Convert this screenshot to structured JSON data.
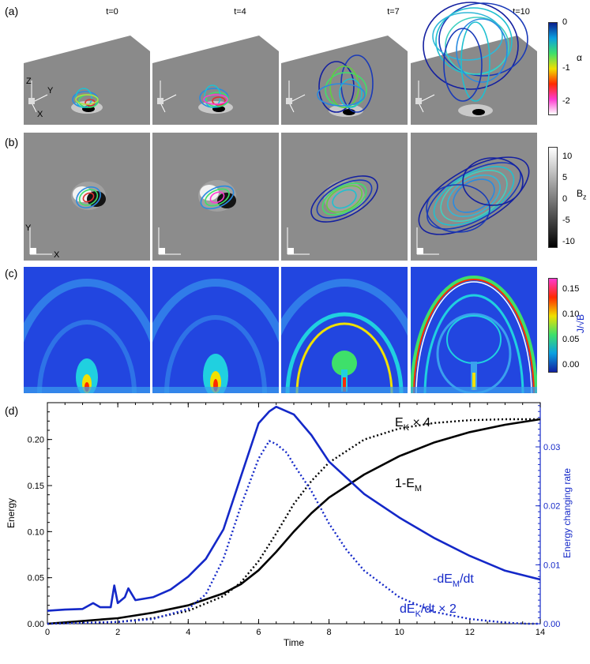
{
  "panels": {
    "a": {
      "label": "(a)",
      "times": [
        "t=0",
        "t=4",
        "t=7",
        "t=10"
      ],
      "colorbar": {
        "title": "α",
        "ticks": [
          "0",
          "-1",
          "-2"
        ],
        "colors": [
          "#0a1e8c",
          "#0aa0e0",
          "#3ee06a",
          "#f0e000",
          "#ff2a00",
          "#ff3ad0",
          "#ffffff"
        ]
      },
      "axes_letters": {
        "z": "Z",
        "y": "Y",
        "x": "X"
      }
    },
    "b": {
      "label": "(b)",
      "colorbar": {
        "title": "Bz",
        "title_main": "B",
        "title_sub": "z",
        "ticks": [
          "10",
          "5",
          "0",
          "-5",
          "-10"
        ],
        "colors": [
          "#ffffff",
          "#808080",
          "#000000"
        ]
      },
      "axes_letters": {
        "y": "Y",
        "x": "X"
      }
    },
    "c": {
      "label": "(c)",
      "colorbar": {
        "title": "J/√B",
        "ticks": [
          "0.15",
          "0.10",
          "0.05",
          "0.00"
        ],
        "colors": [
          "#ff3ad0",
          "#ff2a00",
          "#f0e000",
          "#3ee06a",
          "#0aa0e0",
          "#1020a0"
        ]
      }
    },
    "d": {
      "label": "(d)"
    }
  },
  "chart_data": {
    "type": "line",
    "xlabel": "Time",
    "ylabel": "Energy",
    "y2label": "Energy changing rate",
    "xlim": [
      0,
      14
    ],
    "ylim": [
      0,
      0.24
    ],
    "y2lim": [
      0,
      0.0375
    ],
    "xticks": [
      "0",
      "2",
      "4",
      "6",
      "8",
      "10",
      "12",
      "14"
    ],
    "yticks": [
      "0.00",
      "0.05",
      "0.10",
      "0.15",
      "0.20"
    ],
    "y2ticks": [
      "0.00",
      "0.01",
      "0.02",
      "0.03"
    ],
    "colors": {
      "energy": "#000000",
      "rate": "#1428c8"
    },
    "series": [
      {
        "name": "E_K × 4",
        "axis": "left",
        "style": "dotted",
        "color": "#000000",
        "x": [
          0,
          2,
          3,
          4,
          5,
          5.5,
          6,
          6.5,
          7,
          7.5,
          8,
          9,
          10,
          11,
          12,
          13,
          14
        ],
        "y": [
          0,
          0.002,
          0.006,
          0.014,
          0.03,
          0.045,
          0.068,
          0.098,
          0.13,
          0.155,
          0.175,
          0.2,
          0.212,
          0.218,
          0.221,
          0.222,
          0.222
        ]
      },
      {
        "name": "1-E_M",
        "axis": "left",
        "style": "solid",
        "color": "#000000",
        "x": [
          0,
          2,
          3,
          4,
          5,
          5.5,
          6,
          6.5,
          7,
          7.5,
          8,
          9,
          10,
          11,
          12,
          13,
          14
        ],
        "y": [
          0,
          0.006,
          0.012,
          0.02,
          0.033,
          0.043,
          0.058,
          0.078,
          0.1,
          0.12,
          0.137,
          0.162,
          0.182,
          0.197,
          0.208,
          0.216,
          0.222
        ]
      },
      {
        "name": "-dE_M/dt",
        "axis": "right",
        "style": "solid",
        "color": "#1428c8",
        "x": [
          0,
          0.5,
          1,
          1.3,
          1.5,
          1.8,
          1.9,
          2.0,
          2.2,
          2.3,
          2.5,
          3,
          3.5,
          4,
          4.5,
          5,
          5.5,
          6,
          6.3,
          6.5,
          7,
          7.5,
          8,
          9,
          10,
          11,
          12,
          13,
          14
        ],
        "y": [
          0.0022,
          0.0024,
          0.0025,
          0.0035,
          0.0028,
          0.0028,
          0.0065,
          0.0035,
          0.0045,
          0.006,
          0.004,
          0.0045,
          0.0058,
          0.008,
          0.011,
          0.016,
          0.025,
          0.034,
          0.036,
          0.0368,
          0.0355,
          0.032,
          0.0275,
          0.022,
          0.018,
          0.0145,
          0.0115,
          0.009,
          0.0075
        ]
      },
      {
        "name": "dE_K/dt × 2",
        "axis": "right",
        "style": "dotted",
        "color": "#1428c8",
        "x": [
          0,
          2,
          3,
          4,
          4.5,
          5,
          5.5,
          6,
          6.3,
          6.5,
          6.8,
          7,
          7.5,
          8,
          8.5,
          9,
          10,
          11,
          12,
          13,
          13.6,
          14
        ],
        "y": [
          0,
          0.0003,
          0.0008,
          0.0025,
          0.005,
          0.011,
          0.02,
          0.028,
          0.031,
          0.0305,
          0.029,
          0.027,
          0.0225,
          0.017,
          0.0125,
          0.009,
          0.0045,
          0.002,
          0.0008,
          0.0002,
          0,
          0
        ]
      }
    ],
    "annotations": [
      {
        "series": "E_K × 4",
        "main": "E",
        "sub": "K",
        "tail": " × 4"
      },
      {
        "series": "1-E_M",
        "main": "1-E",
        "sub": "M",
        "tail": ""
      },
      {
        "series": "-dE_M/dt",
        "main": "-dE",
        "sub": "M",
        "tail": "/dt"
      },
      {
        "series": "dE_K/dt × 2",
        "main": "dE",
        "sub": "K",
        "tail": "/dt × 2"
      }
    ]
  }
}
